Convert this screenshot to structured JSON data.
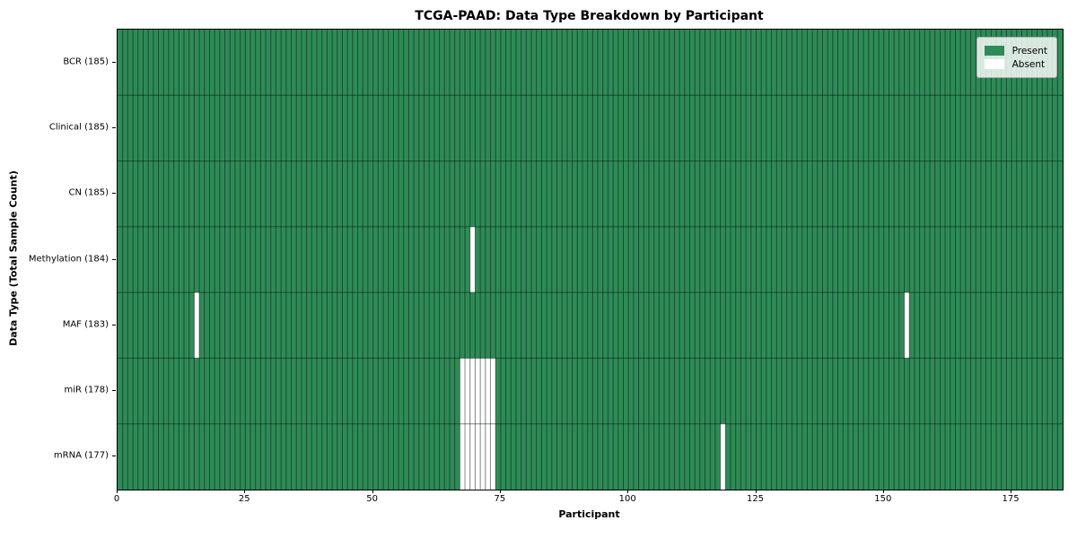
{
  "chart_data": {
    "type": "heatmap",
    "title": "TCGA-PAAD: Data Type Breakdown by Participant",
    "xlabel": "Participant",
    "ylabel": "Data Type (Total Sample Count)",
    "n_participants": 185,
    "xlim": [
      0,
      185
    ],
    "x_ticks": [
      0,
      25,
      50,
      75,
      100,
      125,
      150,
      175
    ],
    "rows": [
      {
        "name": "BCR",
        "label": "BCR (185)",
        "total_samples": 185,
        "absent_participants": []
      },
      {
        "name": "Clinical",
        "label": "Clinical (185)",
        "total_samples": 185,
        "absent_participants": []
      },
      {
        "name": "CN",
        "label": "CN (185)",
        "total_samples": 185,
        "absent_participants": []
      },
      {
        "name": "Methylation",
        "label": "Methylation (184)",
        "total_samples": 184,
        "absent_participants": [
          69
        ]
      },
      {
        "name": "MAF",
        "label": "MAF (183)",
        "total_samples": 183,
        "absent_participants": [
          15,
          154
        ]
      },
      {
        "name": "miR",
        "label": "miR (178)",
        "total_samples": 178,
        "absent_participants": [
          67,
          68,
          69,
          70,
          71,
          72,
          73
        ]
      },
      {
        "name": "mRNA",
        "label": "mRNA (177)",
        "total_samples": 177,
        "absent_participants": [
          67,
          68,
          69,
          70,
          71,
          72,
          73,
          118
        ]
      }
    ],
    "legend": {
      "position": "upper right",
      "entries": [
        {
          "label": "Present",
          "color": "#2e8b57"
        },
        {
          "label": "Absent",
          "color": "#ffffff"
        }
      ]
    },
    "colors": {
      "present": "#2e8b57",
      "absent": "#ffffff",
      "grid_line": "rgba(0,0,0,0.45)",
      "spine": "#000000"
    },
    "grid": "cell-borders"
  }
}
